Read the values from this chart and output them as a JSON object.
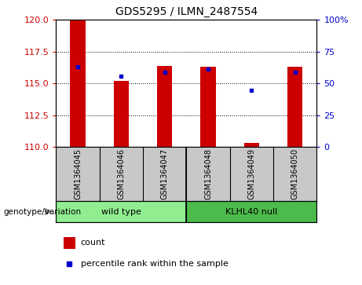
{
  "title": "GDS5295 / ILMN_2487554",
  "samples": [
    "GSM1364045",
    "GSM1364046",
    "GSM1364047",
    "GSM1364048",
    "GSM1364049",
    "GSM1364050"
  ],
  "group_labels": [
    "wild type",
    "KLHL40 null"
  ],
  "group_colors": [
    "#90EE90",
    "#4CBB4C"
  ],
  "bar_color": "#CC0000",
  "dot_color": "#0000CC",
  "red_values": [
    120.0,
    115.2,
    116.4,
    116.3,
    110.3,
    116.3
  ],
  "blue_values": [
    116.3,
    115.55,
    115.85,
    116.1,
    114.45,
    115.9
  ],
  "ylim_left": [
    110,
    120
  ],
  "ylim_right": [
    0,
    100
  ],
  "yticks_left": [
    110,
    112.5,
    115,
    117.5,
    120
  ],
  "yticks_right": [
    0,
    25,
    50,
    75,
    100
  ],
  "left_tick_color": "#CC0000",
  "right_tick_color": "#0000CC",
  "bar_width": 0.35,
  "plot_bg": "#ffffff",
  "sample_box_color": "#c8c8c8",
  "genotype_label": "genotype/variation",
  "legend_count": "count",
  "legend_percentile": "percentile rank within the sample",
  "n_wild": 3,
  "n_null": 3
}
